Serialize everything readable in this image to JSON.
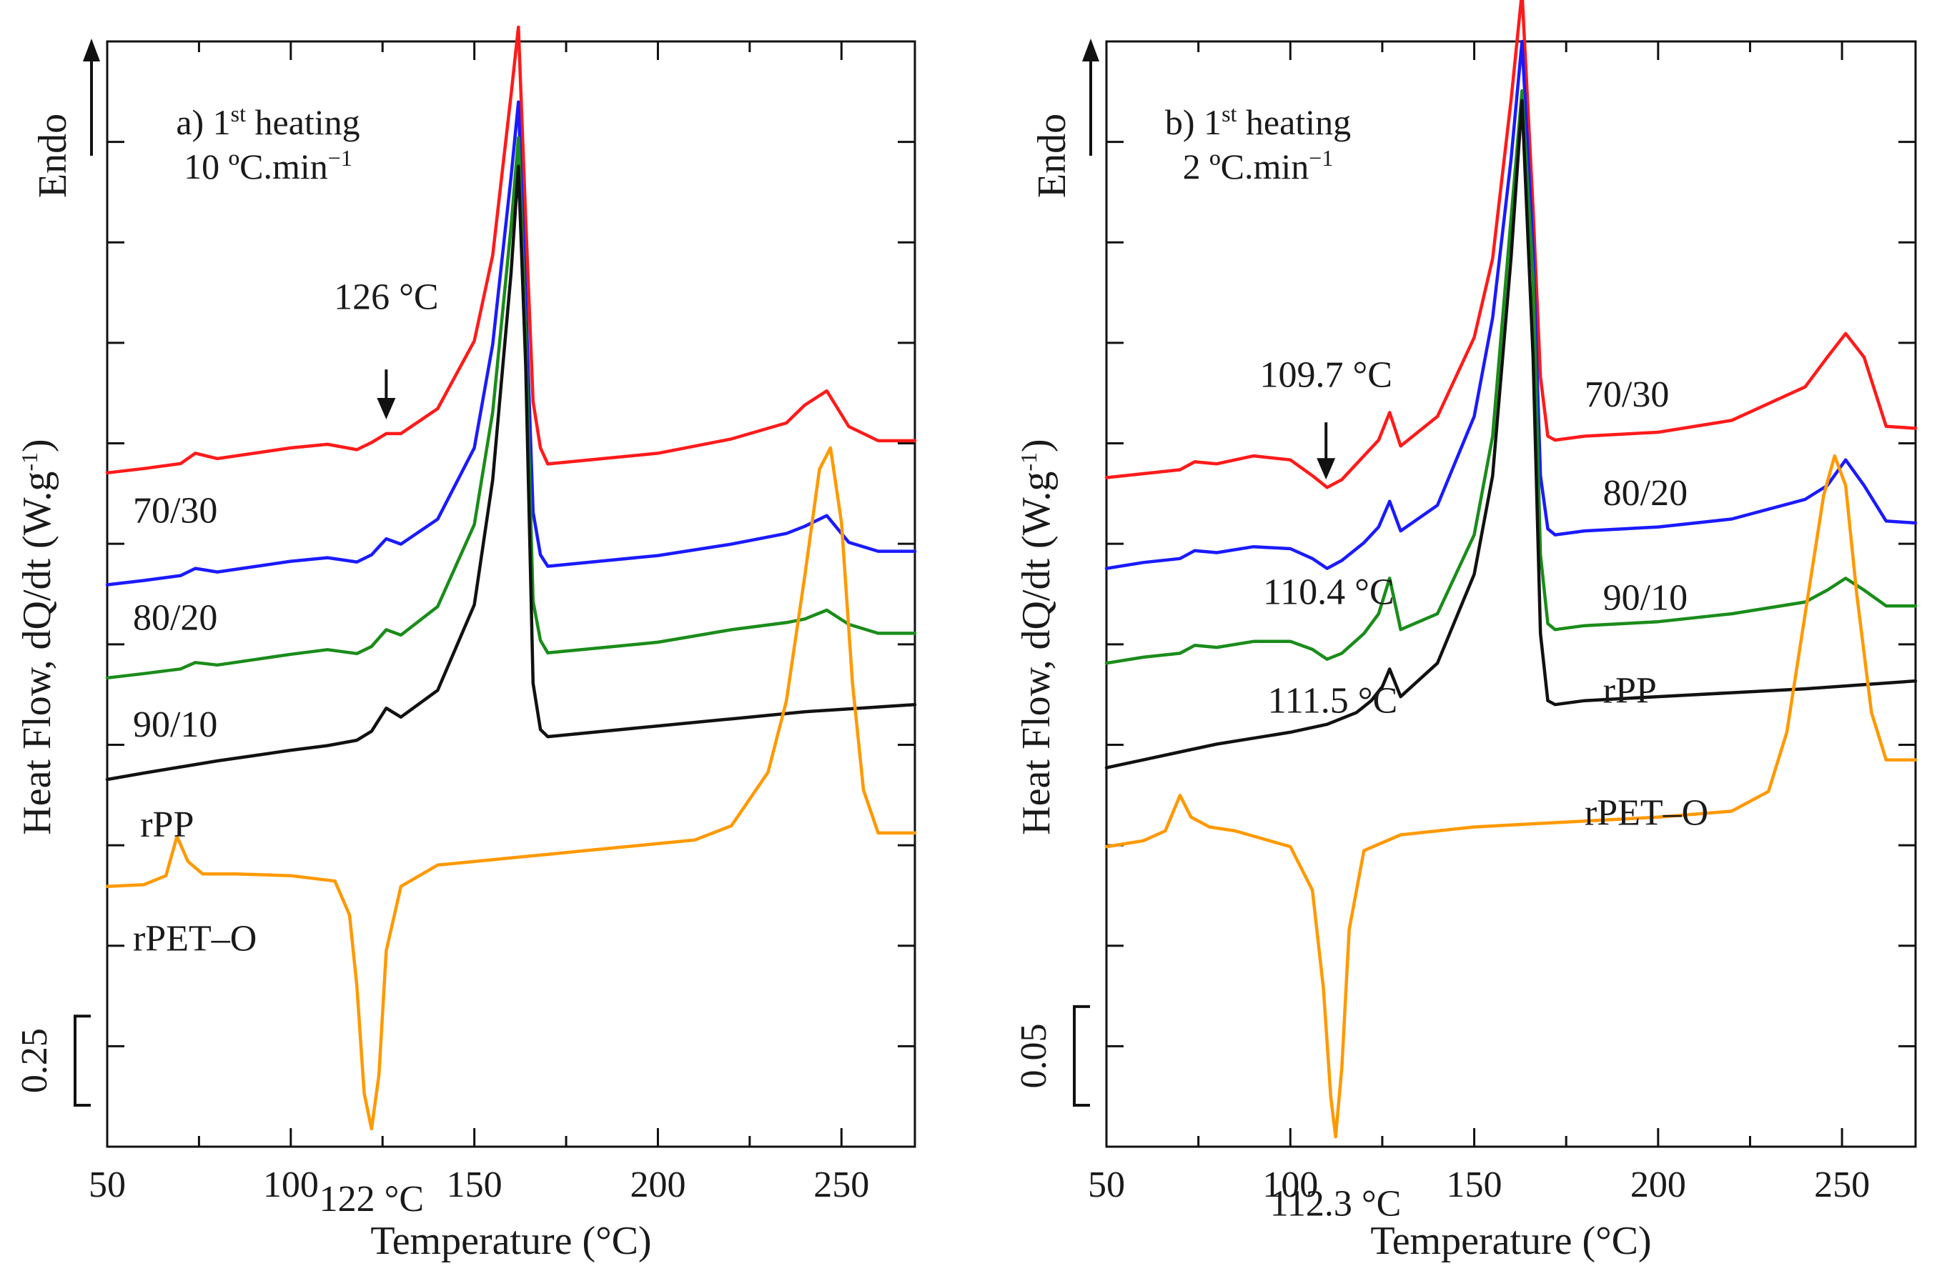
{
  "chart_data": [
    {
      "type": "line",
      "panel": "a",
      "title_line1": {
        "pre": "a) 1",
        "sup": "st",
        "post": " heating"
      },
      "title_line2": {
        "pre": "10 ºC.min",
        "sup": "−1",
        "post": ""
      },
      "xlabel": "Temperature (°C)",
      "ylabel": {
        "pre": "Heat Flow, dQ/dt (W.g",
        "sup": "-1",
        "post": ")"
      },
      "endo_label": "Endo",
      "xlim": [
        50,
        270
      ],
      "xticks": [
        50,
        100,
        150,
        200,
        250
      ],
      "y_units": "W/g (offset)",
      "scale_bar": {
        "label": "0.25",
        "value": 0.25
      },
      "ylim": [
        0,
        3.1
      ],
      "colors": {
        "70/30": "#ff1a1a",
        "80/20": "#1a1aff",
        "90/10": "#1a8c1a",
        "rPP": "#111111",
        "rPET–O": "#ff9900"
      },
      "series": [
        {
          "name": "70/30",
          "x": [
            50,
            60,
            70,
            74,
            80,
            90,
            100,
            110,
            118,
            122,
            126,
            130,
            140,
            150,
            155,
            160,
            162,
            164,
            166,
            168,
            170,
            180,
            200,
            220,
            235,
            240,
            246,
            252,
            260,
            270
          ],
          "y": [
            1.89,
            1.902,
            1.916,
            1.945,
            1.93,
            1.945,
            1.96,
            1.97,
            1.955,
            1.975,
            2.0,
            2.0,
            2.07,
            2.26,
            2.5,
            2.95,
            3.14,
            2.6,
            2.09,
            1.96,
            1.915,
            1.925,
            1.945,
            1.985,
            2.03,
            2.08,
            2.12,
            2.02,
            1.98,
            1.98
          ]
        },
        {
          "name": "80/20",
          "x": [
            50,
            60,
            70,
            74,
            80,
            90,
            100,
            110,
            118,
            122,
            126,
            130,
            140,
            150,
            155,
            160,
            162,
            164,
            166,
            168,
            170,
            180,
            200,
            220,
            235,
            240,
            246,
            252,
            260,
            270
          ],
          "y": [
            1.576,
            1.588,
            1.602,
            1.622,
            1.612,
            1.627,
            1.642,
            1.652,
            1.64,
            1.66,
            1.705,
            1.69,
            1.76,
            1.96,
            2.25,
            2.72,
            2.93,
            2.38,
            1.78,
            1.66,
            1.628,
            1.638,
            1.658,
            1.69,
            1.72,
            1.74,
            1.77,
            1.695,
            1.67,
            1.67
          ]
        },
        {
          "name": "90/10",
          "x": [
            50,
            60,
            70,
            74,
            80,
            90,
            100,
            110,
            118,
            122,
            126,
            130,
            140,
            150,
            155,
            160,
            162,
            164,
            166,
            168,
            170,
            180,
            200,
            220,
            235,
            240,
            246,
            252,
            260,
            270
          ],
          "y": [
            1.315,
            1.327,
            1.34,
            1.358,
            1.351,
            1.366,
            1.381,
            1.394,
            1.383,
            1.403,
            1.45,
            1.435,
            1.515,
            1.745,
            2.06,
            2.58,
            2.83,
            2.27,
            1.53,
            1.42,
            1.385,
            1.395,
            1.415,
            1.45,
            1.47,
            1.48,
            1.505,
            1.465,
            1.44,
            1.44
          ]
        },
        {
          "name": "rPP",
          "x": [
            50,
            60,
            70,
            80,
            90,
            100,
            110,
            118,
            122,
            126,
            130,
            140,
            150,
            155,
            160,
            162,
            164,
            166,
            168,
            170,
            180,
            200,
            220,
            240,
            255,
            270
          ],
          "y": [
            1.03,
            1.048,
            1.065,
            1.082,
            1.097,
            1.112,
            1.125,
            1.14,
            1.165,
            1.23,
            1.205,
            1.28,
            1.52,
            1.87,
            2.45,
            2.75,
            2.19,
            1.3,
            1.17,
            1.15,
            1.16,
            1.18,
            1.2,
            1.22,
            1.23,
            1.24
          ]
        },
        {
          "name": "rPET–O",
          "x": [
            50,
            60,
            66,
            69,
            72,
            76,
            85,
            100,
            112,
            116,
            118,
            120,
            122,
            124,
            126,
            130,
            140,
            160,
            180,
            200,
            210,
            220,
            230,
            235,
            240,
            244,
            247,
            250,
            253,
            256,
            260,
            270
          ],
          "y": [
            0.73,
            0.735,
            0.76,
            0.87,
            0.8,
            0.765,
            0.765,
            0.76,
            0.745,
            0.65,
            0.45,
            0.15,
            0.05,
            0.2,
            0.55,
            0.73,
            0.79,
            0.81,
            0.83,
            0.85,
            0.86,
            0.9,
            1.05,
            1.25,
            1.6,
            1.9,
            1.96,
            1.75,
            1.3,
            1.0,
            0.88,
            0.88
          ]
        }
      ],
      "annotations": [
        {
          "text": "126 °C",
          "x": 126,
          "y": 2.35,
          "arrow": true,
          "arrow_from": 2.18,
          "arrow_to": 2.04
        },
        {
          "text": "122 °C",
          "x": 122,
          "y": -0.18
        }
      ],
      "series_labels": [
        {
          "text": "70/30",
          "x": 57,
          "y": 1.75
        },
        {
          "text": "80/20",
          "x": 57,
          "y": 1.45
        },
        {
          "text": "90/10",
          "x": 57,
          "y": 1.15
        },
        {
          "text": "rPP",
          "x": 59,
          "y": 0.87
        },
        {
          "text": "rPET–O",
          "x": 57,
          "y": 0.55
        }
      ]
    },
    {
      "type": "line",
      "panel": "b",
      "title_line1": {
        "pre": "b) 1",
        "sup": "st",
        "post": " heating"
      },
      "title_line2": {
        "pre": "2 ºC.min",
        "sup": "−1",
        "post": ""
      },
      "xlabel": "Temperature (°C)",
      "ylabel": {
        "pre": "Heat Flow, dQ/dt (W.g",
        "sup": "-1",
        "post": ")"
      },
      "endo_label": "Endo",
      "xlim": [
        50,
        270
      ],
      "xticks": [
        50,
        100,
        150,
        200,
        250
      ],
      "y_units": "W/g (offset)",
      "scale_bar": {
        "label": "0.05",
        "value": 0.05
      },
      "ylim": [
        0,
        0.56
      ],
      "colors": {
        "70/30": "#ff1a1a",
        "80/20": "#1a1aff",
        "90/10": "#1a8c1a",
        "rPP": "#111111",
        "rPET–O": "#ff9900"
      },
      "series": [
        {
          "name": "70/30",
          "x": [
            50,
            60,
            70,
            74,
            80,
            90,
            100,
            106,
            110,
            114,
            120,
            124,
            127,
            130,
            140,
            150,
            155,
            160,
            163,
            166,
            168,
            170,
            172,
            180,
            200,
            220,
            240,
            246,
            251,
            256,
            262,
            270
          ],
          "y": [
            0.339,
            0.341,
            0.343,
            0.347,
            0.346,
            0.35,
            0.348,
            0.34,
            0.334,
            0.338,
            0.35,
            0.358,
            0.372,
            0.355,
            0.37,
            0.41,
            0.45,
            0.53,
            0.585,
            0.475,
            0.39,
            0.36,
            0.358,
            0.36,
            0.362,
            0.368,
            0.385,
            0.4,
            0.412,
            0.4,
            0.365,
            0.364
          ]
        },
        {
          "name": "80/20",
          "x": [
            50,
            60,
            70,
            74,
            80,
            90,
            100,
            106,
            110,
            114,
            120,
            124,
            127,
            130,
            140,
            150,
            155,
            160,
            163,
            166,
            168,
            170,
            172,
            180,
            200,
            220,
            240,
            246,
            251,
            256,
            262,
            270
          ],
          "y": [
            0.293,
            0.296,
            0.298,
            0.302,
            0.301,
            0.304,
            0.303,
            0.298,
            0.293,
            0.297,
            0.306,
            0.314,
            0.327,
            0.312,
            0.325,
            0.37,
            0.42,
            0.5,
            0.56,
            0.455,
            0.34,
            0.313,
            0.31,
            0.312,
            0.314,
            0.318,
            0.328,
            0.335,
            0.348,
            0.335,
            0.317,
            0.316
          ]
        },
        {
          "name": "90/10",
          "x": [
            50,
            60,
            70,
            74,
            80,
            90,
            100,
            106,
            110,
            114,
            120,
            124,
            127,
            130,
            140,
            150,
            155,
            160,
            163,
            166,
            168,
            170,
            172,
            180,
            200,
            220,
            240,
            246,
            251,
            256,
            262,
            270
          ],
          "y": [
            0.245,
            0.248,
            0.25,
            0.254,
            0.253,
            0.256,
            0.256,
            0.252,
            0.247,
            0.25,
            0.26,
            0.27,
            0.288,
            0.262,
            0.27,
            0.31,
            0.36,
            0.47,
            0.535,
            0.44,
            0.3,
            0.265,
            0.262,
            0.264,
            0.266,
            0.27,
            0.276,
            0.282,
            0.288,
            0.282,
            0.274,
            0.274
          ]
        },
        {
          "name": "rPP",
          "x": [
            50,
            60,
            70,
            80,
            90,
            100,
            110,
            118,
            122,
            125,
            127,
            130,
            140,
            150,
            155,
            160,
            163,
            166,
            168,
            170,
            172,
            180,
            200,
            220,
            240,
            255,
            270
          ],
          "y": [
            0.192,
            0.196,
            0.2,
            0.204,
            0.207,
            0.21,
            0.214,
            0.22,
            0.226,
            0.233,
            0.242,
            0.228,
            0.245,
            0.29,
            0.34,
            0.45,
            0.53,
            0.4,
            0.26,
            0.226,
            0.224,
            0.226,
            0.228,
            0.23,
            0.232,
            0.234,
            0.236
          ]
        },
        {
          "name": "rPET–O",
          "x": [
            50,
            60,
            66,
            70,
            73,
            78,
            85,
            100,
            106,
            109,
            111,
            112.3,
            114,
            116,
            120,
            130,
            150,
            170,
            200,
            220,
            230,
            235,
            240,
            245,
            248,
            251,
            254,
            258,
            262,
            270
          ],
          "y": [
            0.152,
            0.155,
            0.16,
            0.178,
            0.167,
            0.162,
            0.16,
            0.152,
            0.13,
            0.08,
            0.025,
            0.005,
            0.04,
            0.11,
            0.15,
            0.158,
            0.162,
            0.164,
            0.167,
            0.17,
            0.18,
            0.21,
            0.27,
            0.33,
            0.35,
            0.335,
            0.28,
            0.22,
            0.196,
            0.196
          ]
        }
      ],
      "annotations": [
        {
          "text": "109.7 °C",
          "x": 109.7,
          "y": 0.385,
          "arrow": true,
          "arrow_from": 0.367,
          "arrow_to": 0.338
        },
        {
          "text": "110.4 °C",
          "x": 110.4,
          "y": 0.275
        },
        {
          "text": "111.5 °C",
          "x": 111.5,
          "y": 0.22
        },
        {
          "text": "112.3 °C",
          "x": 112.3,
          "y": -0.035
        }
      ],
      "series_labels": [
        {
          "text": "70/30",
          "x": 180,
          "y": 0.375
        },
        {
          "text": "80/20",
          "x": 185,
          "y": 0.325
        },
        {
          "text": "90/10",
          "x": 185,
          "y": 0.272
        },
        {
          "text": "rPP",
          "x": 185,
          "y": 0.225
        },
        {
          "text": "rPET–O",
          "x": 180,
          "y": 0.163
        }
      ]
    }
  ]
}
